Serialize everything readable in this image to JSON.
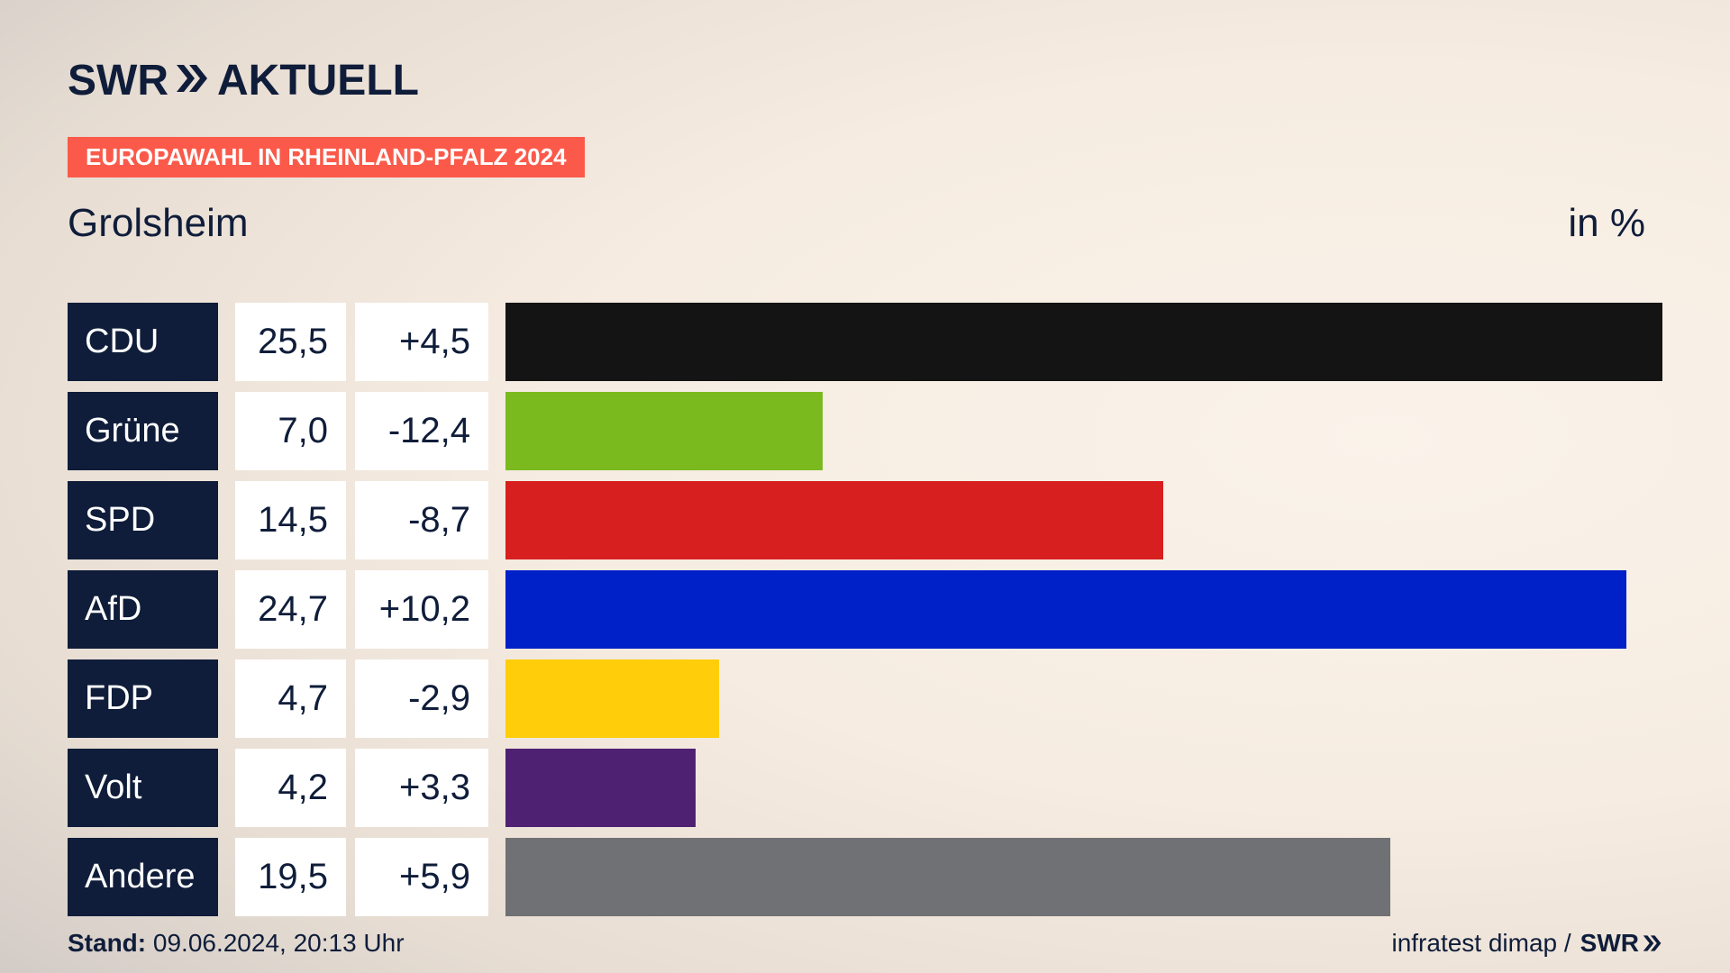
{
  "brand": {
    "logo_left": "SWR",
    "logo_right": "AKTUELL",
    "logo_icon": "double-chevron-icon"
  },
  "ribbon": "EUROPAWAHL IN RHEINLAND-PFALZ 2024",
  "place": "Grolsheim",
  "unit": "in %",
  "chart_data": {
    "type": "bar",
    "orientation": "horizontal",
    "categories": [
      "CDU",
      "Grüne",
      "SPD",
      "AfD",
      "FDP",
      "Volt",
      "Andere"
    ],
    "values": [
      25.5,
      7.0,
      14.5,
      24.7,
      4.7,
      4.2,
      19.5
    ],
    "value_labels": [
      "25,5",
      "7,0",
      "14,5",
      "24,7",
      "4,7",
      "4,2",
      "19,5"
    ],
    "diff_labels": [
      "+4,5",
      "-12,4",
      "-8,7",
      "+10,2",
      "-2,9",
      "+3,3",
      "+5,9"
    ],
    "diffs": [
      4.5,
      -12.4,
      -8.7,
      10.2,
      -2.9,
      3.3,
      5.9
    ],
    "colors": [
      "#141414",
      "#7aba1e",
      "#d81f20",
      "#0020c8",
      "#ffcd0a",
      "#4f2173",
      "#707174"
    ],
    "xlim": [
      0,
      25.5
    ],
    "grid": false,
    "legend": "none"
  },
  "footer": {
    "stand_label": "Stand:",
    "stand_value": "09.06.2024, 20:13 Uhr",
    "source": "infratest dimap /",
    "source_logo": "SWR",
    "source_logo_icon": "double-chevron-icon"
  }
}
